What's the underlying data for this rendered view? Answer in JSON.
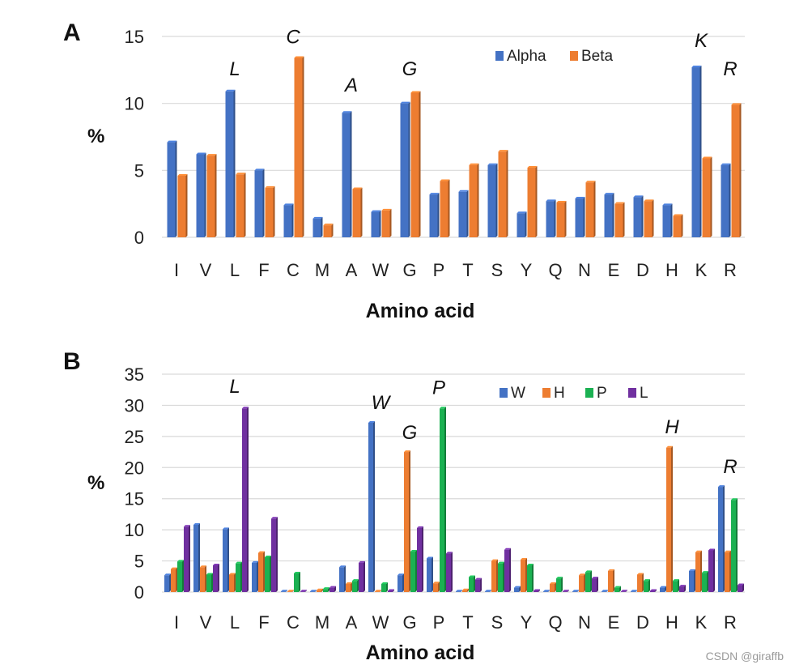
{
  "colors": {
    "alpha": "#4472C4",
    "beta": "#ED7D31",
    "W": "#4472C4",
    "H": "#ED7D31",
    "P": "#1BB152",
    "L": "#7030A0",
    "grid": "#D9D9D9",
    "text": "#222222"
  },
  "watermark": "CSDN @giraffb",
  "chart_data": [
    {
      "panel": "A",
      "type": "bar",
      "title": "",
      "xlabel": "Amino acid",
      "ylabel": "%",
      "ylim": [
        0,
        15
      ],
      "yticks": [
        0,
        5,
        10,
        15
      ],
      "grid": true,
      "legend_position": "top-right",
      "categories": [
        "I",
        "V",
        "L",
        "F",
        "C",
        "M",
        "A",
        "W",
        "G",
        "P",
        "T",
        "S",
        "Y",
        "Q",
        "N",
        "E",
        "D",
        "H",
        "K",
        "R"
      ],
      "series": [
        {
          "name": "Alpha",
          "color_key": "alpha",
          "values": [
            7.1,
            6.2,
            10.9,
            5.0,
            2.4,
            1.4,
            9.3,
            1.9,
            10.0,
            3.2,
            3.4,
            5.4,
            1.8,
            2.7,
            2.9,
            3.2,
            3.0,
            2.4,
            12.7,
            5.4
          ]
        },
        {
          "name": "Beta",
          "color_key": "beta",
          "values": [
            4.6,
            6.1,
            4.7,
            3.7,
            13.4,
            0.9,
            3.6,
            2.0,
            10.8,
            4.2,
            5.4,
            6.4,
            5.2,
            2.6,
            4.1,
            2.5,
            2.7,
            1.6,
            5.9,
            9.9
          ]
        }
      ],
      "annotations": [
        {
          "text": "L",
          "category": "L",
          "y": 12.1
        },
        {
          "text": "C",
          "category": "C",
          "y": 14.5
        },
        {
          "text": "A",
          "category": "A",
          "y": 10.9
        },
        {
          "text": "G",
          "category": "G",
          "y": 12.1
        },
        {
          "text": "K",
          "category": "K",
          "y": 14.2
        },
        {
          "text": "R",
          "category": "R",
          "y": 12.1
        }
      ]
    },
    {
      "panel": "B",
      "type": "bar",
      "title": "",
      "xlabel": "Amino acid",
      "ylabel": "%",
      "ylim": [
        0,
        35
      ],
      "yticks": [
        0,
        5,
        10,
        15,
        20,
        25,
        30,
        35
      ],
      "grid": true,
      "legend_position": "top-right",
      "categories": [
        "I",
        "V",
        "L",
        "F",
        "C",
        "M",
        "A",
        "W",
        "G",
        "P",
        "T",
        "S",
        "Y",
        "Q",
        "N",
        "E",
        "D",
        "H",
        "K",
        "R"
      ],
      "series": [
        {
          "name": "W",
          "color_key": "W",
          "values": [
            2.7,
            10.8,
            10.1,
            4.7,
            0.1,
            0.1,
            4.0,
            27.2,
            2.7,
            5.4,
            0.1,
            0.1,
            0.7,
            0.1,
            0.1,
            0.1,
            0.1,
            0.7,
            3.4,
            16.9
          ]
        },
        {
          "name": "H",
          "color_key": "H",
          "values": [
            3.7,
            4.0,
            2.8,
            6.3,
            0.1,
            0.3,
            1.3,
            0.1,
            22.5,
            1.4,
            0.3,
            5.0,
            5.2,
            1.3,
            2.7,
            3.4,
            2.8,
            23.2,
            6.4,
            6.4
          ]
        },
        {
          "name": "P",
          "color_key": "P",
          "values": [
            4.9,
            2.8,
            4.6,
            5.6,
            3.0,
            0.5,
            1.8,
            1.3,
            6.5,
            29.5,
            2.4,
            4.6,
            4.3,
            2.2,
            3.2,
            0.7,
            1.8,
            1.8,
            3.1,
            14.8
          ]
        },
        {
          "name": "L",
          "color_key": "L",
          "values": [
            10.5,
            4.3,
            29.5,
            11.8,
            0.1,
            0.7,
            4.7,
            0.2,
            10.3,
            6.2,
            2.0,
            6.8,
            0.2,
            0.1,
            2.2,
            0.1,
            0.2,
            0.9,
            6.7,
            1.1
          ]
        }
      ],
      "annotations": [
        {
          "text": "L",
          "category": "L",
          "y": 32.0
        },
        {
          "text": "W",
          "category": "W",
          "y": 29.4
        },
        {
          "text": "G",
          "category": "G",
          "y": 24.6
        },
        {
          "text": "P",
          "category": "P",
          "y": 31.8
        },
        {
          "text": "H",
          "category": "H",
          "y": 25.5
        },
        {
          "text": "R",
          "category": "R",
          "y": 19.1
        }
      ]
    }
  ],
  "panels": [
    {
      "label": "A"
    },
    {
      "label": "B"
    }
  ]
}
